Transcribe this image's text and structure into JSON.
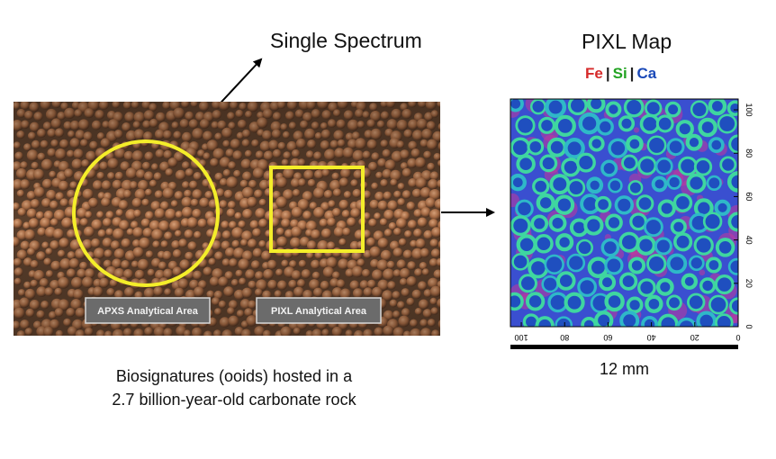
{
  "labels": {
    "single_spectrum": "Single Spectrum",
    "pixl_map_title": "PIXL Map",
    "apxs_area": "APXS Analytical Area",
    "pixl_area": "PIXL Analytical Area",
    "caption_line1": "Biosignatures (ooids) hosted in a",
    "caption_line2": "2.7 billion-year-old carbonate rock",
    "scale": "12 mm"
  },
  "legend": [
    {
      "element": "Fe",
      "color": "#d62a2a"
    },
    {
      "element": "Si",
      "color": "#22a322"
    },
    {
      "element": "Ca",
      "color": "#1a49b8"
    }
  ],
  "legend_separator": "|",
  "map_axes": {
    "bottom_ticks": [
      "100",
      "80",
      "60",
      "40",
      "20",
      "0"
    ],
    "right_ticks": [
      "100",
      "80",
      "60",
      "40",
      "20",
      "0"
    ]
  },
  "colors": {
    "annotation_yellow": "#f4ee2a",
    "rock_base": "#5a3f2c",
    "map_base": "#3a4fd0"
  }
}
